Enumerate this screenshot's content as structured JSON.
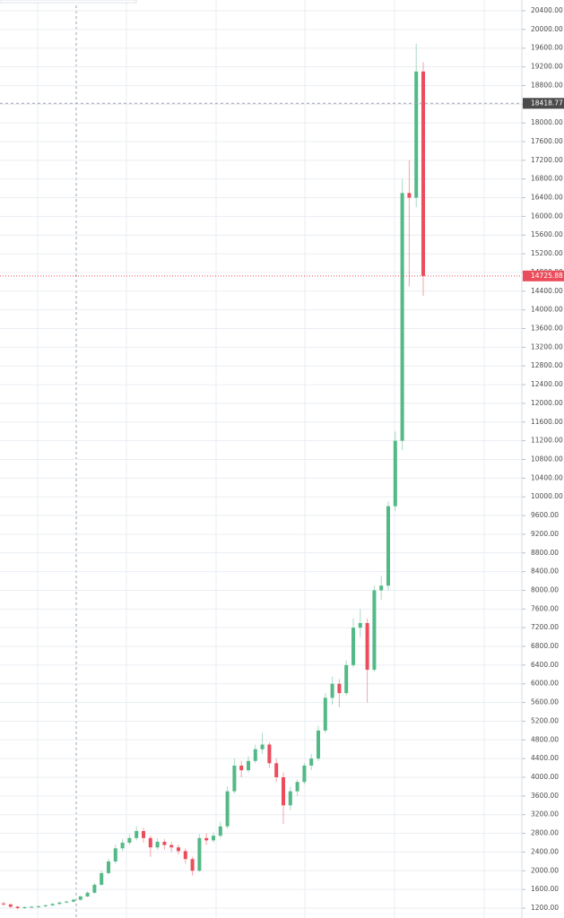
{
  "chart_data": {
    "type": "candlestick",
    "open": [
      1300,
      1280,
      1230,
      1200,
      1220,
      1230,
      1240,
      1260,
      1290,
      1320,
      1340,
      1380,
      1450,
      1530,
      1700,
      1950,
      2200,
      2480,
      2600,
      2700,
      2850,
      2700,
      2500,
      2620,
      2550,
      2500,
      2420,
      2250,
      2000,
      2700,
      2650,
      2750,
      2950,
      3700,
      4250,
      4150,
      4350,
      4600,
      4700,
      4300,
      4000,
      3400,
      3700,
      3900,
      4250,
      4400,
      5000,
      5700,
      6000,
      5800,
      6400,
      7200,
      7300,
      6300,
      8000,
      8100,
      9800,
      11200,
      16500,
      16400,
      19100
    ],
    "high": [
      1340,
      1300,
      1250,
      1240,
      1250,
      1260,
      1280,
      1310,
      1340,
      1360,
      1400,
      1470,
      1560,
      1740,
      2000,
      2260,
      2560,
      2680,
      2780,
      2950,
      2920,
      2750,
      2700,
      2680,
      2620,
      2560,
      2480,
      2300,
      2780,
      2800,
      2820,
      3050,
      3800,
      4400,
      4350,
      4450,
      4700,
      4950,
      4750,
      4400,
      4100,
      3800,
      3950,
      4300,
      4500,
      5100,
      5800,
      6150,
      6100,
      6500,
      7400,
      7600,
      7400,
      8100,
      8300,
      9900,
      11400,
      16800,
      17200,
      19700,
      19300
    ],
    "low": [
      1250,
      1200,
      1170,
      1180,
      1200,
      1210,
      1220,
      1240,
      1270,
      1300,
      1320,
      1360,
      1430,
      1510,
      1680,
      1920,
      2150,
      2420,
      2550,
      2650,
      2600,
      2300,
      2450,
      2450,
      2400,
      2350,
      2150,
      1900,
      1980,
      2550,
      2600,
      2700,
      2900,
      3650,
      4000,
      4100,
      4300,
      4500,
      4200,
      3900,
      3000,
      3300,
      3600,
      3850,
      4150,
      4350,
      4950,
      5550,
      5500,
      5750,
      6350,
      7000,
      5600,
      6250,
      7800,
      8000,
      9700,
      11000,
      14500,
      16200,
      14300
    ],
    "close": [
      1280,
      1230,
      1200,
      1220,
      1230,
      1240,
      1260,
      1290,
      1320,
      1340,
      1380,
      1450,
      1530,
      1700,
      1950,
      2200,
      2480,
      2600,
      2700,
      2850,
      2700,
      2500,
      2620,
      2550,
      2500,
      2420,
      2250,
      2000,
      2700,
      2650,
      2750,
      2950,
      3700,
      4250,
      4150,
      4350,
      4600,
      4700,
      4300,
      4000,
      3400,
      3700,
      3900,
      4250,
      4400,
      5000,
      5700,
      6000,
      5800,
      6400,
      7200,
      7300,
      6300,
      8000,
      8100,
      9800,
      11200,
      16500,
      16400,
      19100,
      14725.88
    ],
    "up_color": "#53b987",
    "down_color": "#eb4d5c",
    "ylim": [
      989,
      20630
    ],
    "yticks": [
      {
        "value": 1200,
        "label": "1200.00"
      },
      {
        "value": 1600,
        "label": "1600.00"
      },
      {
        "value": 2000,
        "label": "2000.00"
      },
      {
        "value": 2400,
        "label": "2400.00"
      },
      {
        "value": 2800,
        "label": "2800.00"
      },
      {
        "value": 3200,
        "label": "3200.00"
      },
      {
        "value": 3600,
        "label": "3600.00"
      },
      {
        "value": 4000,
        "label": "4000.00"
      },
      {
        "value": 4400,
        "label": "4400.00"
      },
      {
        "value": 4800,
        "label": "4800.00"
      },
      {
        "value": 5200,
        "label": "5200.00"
      },
      {
        "value": 5600,
        "label": "5600.00"
      },
      {
        "value": 6000,
        "label": "6000.00"
      },
      {
        "value": 6400,
        "label": "6400.00"
      },
      {
        "value": 6800,
        "label": "6800.00"
      },
      {
        "value": 7200,
        "label": "7200.00"
      },
      {
        "value": 7600,
        "label": "7600.00"
      },
      {
        "value": 8000,
        "label": "8000.00"
      },
      {
        "value": 8400,
        "label": "8400.00"
      },
      {
        "value": 8800,
        "label": "8800.00"
      },
      {
        "value": 9200,
        "label": "9200.00"
      },
      {
        "value": 9600,
        "label": "9600.00"
      },
      {
        "value": 10000,
        "label": "10000.00"
      },
      {
        "value": 10400,
        "label": "10400.00"
      },
      {
        "value": 10800,
        "label": "10800.00"
      },
      {
        "value": 11200,
        "label": "11200.00"
      },
      {
        "value": 11600,
        "label": "11600.00"
      },
      {
        "value": 12000,
        "label": "12000.00"
      },
      {
        "value": 12400,
        "label": "12400.00"
      },
      {
        "value": 12800,
        "label": "12800.00"
      },
      {
        "value": 13200,
        "label": "13200.00"
      },
      {
        "value": 13600,
        "label": "13600.00"
      },
      {
        "value": 14000,
        "label": "14000.00"
      },
      {
        "value": 14400,
        "label": "14400.00"
      },
      {
        "value": 14800,
        "label": "14800.00"
      },
      {
        "value": 15200,
        "label": "15200.00"
      },
      {
        "value": 15600,
        "label": "15600.00"
      },
      {
        "value": 16000,
        "label": "16000.00"
      },
      {
        "value": 16400,
        "label": "16400.00"
      },
      {
        "value": 16800,
        "label": "16800.00"
      },
      {
        "value": 17200,
        "label": "17200.00"
      },
      {
        "value": 17600,
        "label": "17600.00"
      },
      {
        "value": 18000,
        "label": "18000.00"
      },
      {
        "value": 18400,
        "label": "18400.00"
      },
      {
        "value": 18800,
        "label": "18800.00"
      },
      {
        "value": 19200,
        "label": "19200.00"
      },
      {
        "value": 19600,
        "label": "19600.00"
      },
      {
        "value": 20000,
        "label": "20000.00"
      },
      {
        "value": 20400,
        "label": "20400.00"
      }
    ],
    "grid": true,
    "crosshair_price": 18418.77,
    "last_price": 14725.88
  }
}
